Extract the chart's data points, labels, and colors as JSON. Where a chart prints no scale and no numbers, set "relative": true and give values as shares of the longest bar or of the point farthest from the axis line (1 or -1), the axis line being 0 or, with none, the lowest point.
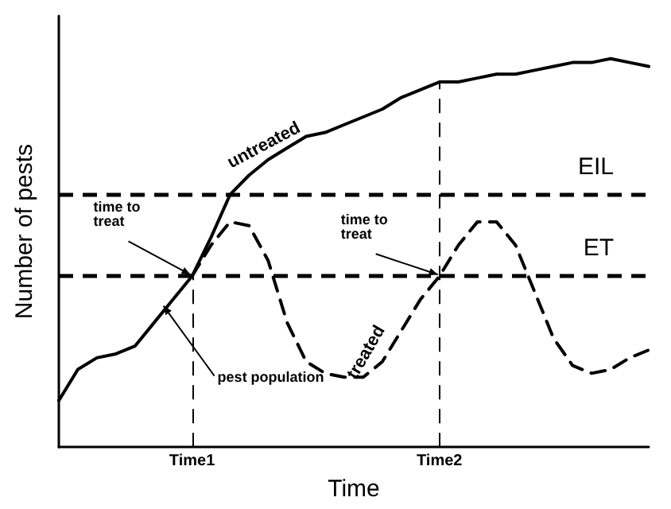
{
  "chart_data": {
    "type": "line",
    "relative": true,
    "xlabel": "Time",
    "ylabel": "Number of pests",
    "categories": [
      null,
      null,
      null,
      null,
      null,
      null,
      null,
      "Time1",
      null,
      null,
      null,
      null,
      null,
      null,
      null,
      null,
      null,
      null,
      null,
      null,
      "Time2",
      null,
      null,
      null,
      null,
      null,
      null,
      null,
      null,
      null,
      null,
      null
    ],
    "series": [
      {
        "name": "untreated",
        "color": "#000000",
        "line_style": "solid",
        "values": [
          0.12,
          0.2,
          0.23,
          0.24,
          0.26,
          0.32,
          0.38,
          0.44,
          0.54,
          0.65,
          0.7,
          0.74,
          0.77,
          0.8,
          0.81,
          0.83,
          0.85,
          0.87,
          0.9,
          0.92,
          0.94,
          0.94,
          0.95,
          0.96,
          0.96,
          0.97,
          0.98,
          0.99,
          0.99,
          1,
          0.99,
          0.98
        ]
      },
      {
        "name": "treated",
        "color": "#000000",
        "line_style": "dashed",
        "values": [
          null,
          null,
          null,
          null,
          null,
          null,
          null,
          0.44,
          0.52,
          0.58,
          0.57,
          0.48,
          0.32,
          0.22,
          0.19,
          0.18,
          0.18,
          0.22,
          0.3,
          0.38,
          0.44,
          0.52,
          0.58,
          0.58,
          0.52,
          0.4,
          0.28,
          0.21,
          0.19,
          0.2,
          0.23,
          0.25
        ]
      }
    ],
    "ref_lines": [
      {
        "axis": "y",
        "value": 0.65,
        "label": "EIL",
        "line_style": "dashed",
        "color": "#000000"
      },
      {
        "axis": "y",
        "value": 0.44,
        "label": "ET",
        "line_style": "dashed",
        "color": "#000000"
      },
      {
        "axis": "x",
        "value": "Time1",
        "line_style": "dashed",
        "color": "#000000"
      },
      {
        "axis": "x",
        "value": "Time2",
        "line_style": "dashed",
        "color": "#000000"
      }
    ],
    "annotations": [
      "time to treat",
      "time to treat",
      "pest population"
    ],
    "grid": false,
    "legend": false,
    "marker": "none",
    "tick_labels": "x"
  }
}
